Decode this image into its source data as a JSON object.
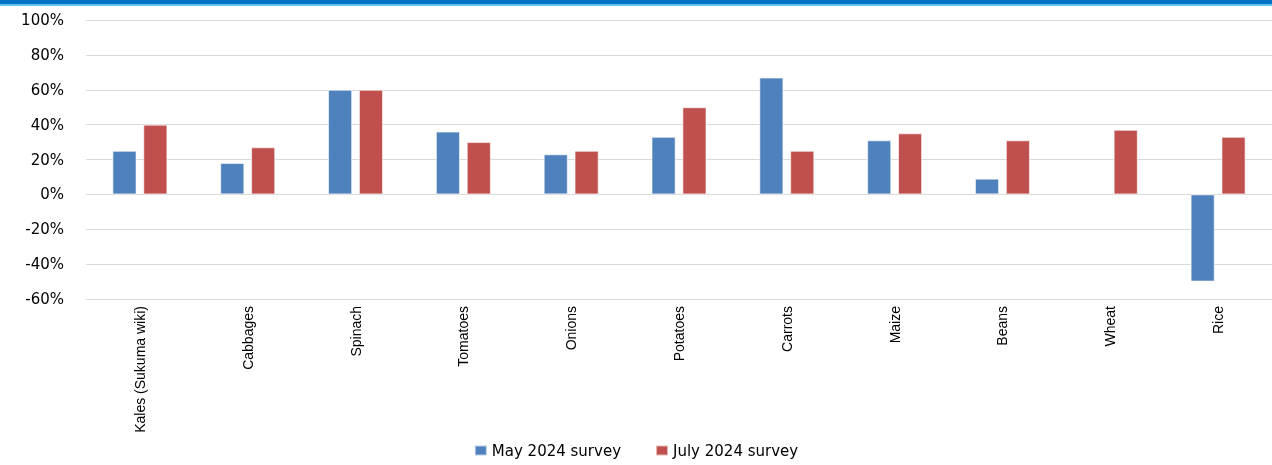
{
  "chart_data": {
    "type": "bar",
    "categories": [
      "Kales (Sukuma wiki)",
      "Cabbages",
      "Spinach",
      "Tomatoes",
      "Onions",
      "Potatoes",
      "Carrots",
      "Maize",
      "Beans",
      "Wheat",
      "Rice"
    ],
    "series": [
      {
        "name": "May 2024 survey",
        "color": "#4f81bd",
        "values": [
          25,
          18,
          60,
          36,
          23,
          33,
          67,
          31,
          9,
          null,
          -50
        ]
      },
      {
        "name": "July 2024 survey",
        "color": "#c0504d",
        "values": [
          40,
          27,
          60,
          30,
          25,
          50,
          25,
          35,
          31,
          37,
          33
        ]
      }
    ],
    "ylim": [
      -60,
      100
    ],
    "yticks": [
      {
        "value": -60,
        "label": "-60%"
      },
      {
        "value": -40,
        "label": "-40%"
      },
      {
        "value": -20,
        "label": "-20%"
      },
      {
        "value": 0,
        "label": "0%"
      },
      {
        "value": 20,
        "label": "20%"
      },
      {
        "value": 40,
        "label": "40%"
      },
      {
        "value": 60,
        "label": "60%"
      },
      {
        "value": 80,
        "label": "80%"
      },
      {
        "value": 100,
        "label": "100%"
      }
    ],
    "grid": "y",
    "legend": "bottom"
  }
}
